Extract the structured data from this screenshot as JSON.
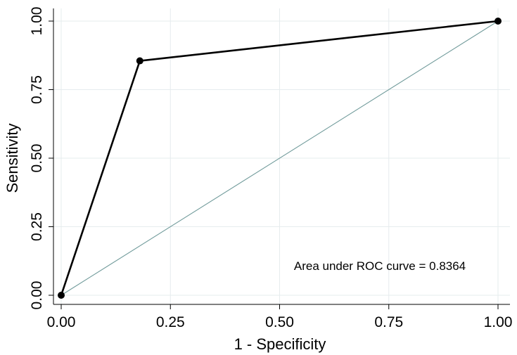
{
  "chart_data": {
    "type": "line",
    "xlabel": "1 - Specificity",
    "ylabel": "Sensitivity",
    "xlim": [
      0,
      1
    ],
    "ylim": [
      0,
      1
    ],
    "xticks": [
      0,
      0.25,
      0.5,
      0.75,
      1
    ],
    "yticks": [
      0,
      0.25,
      0.5,
      0.75,
      1
    ],
    "xtick_labels": [
      "0.00",
      "0.25",
      "0.50",
      "0.75",
      "1.00"
    ],
    "ytick_labels": [
      "0.00",
      "0.25",
      "0.50",
      "0.75",
      "1.00"
    ],
    "grid": true,
    "series": [
      {
        "x": [
          0,
          0.18,
          1
        ],
        "y": [
          0,
          0.855,
          1
        ],
        "color": "#000000",
        "markers": true
      },
      {
        "x": [
          0,
          1
        ],
        "y": [
          0,
          1
        ],
        "color": "#6f9a9a",
        "markers": false,
        "style": "reference"
      }
    ],
    "annotation": "Area under ROC curve = 0.8364"
  }
}
